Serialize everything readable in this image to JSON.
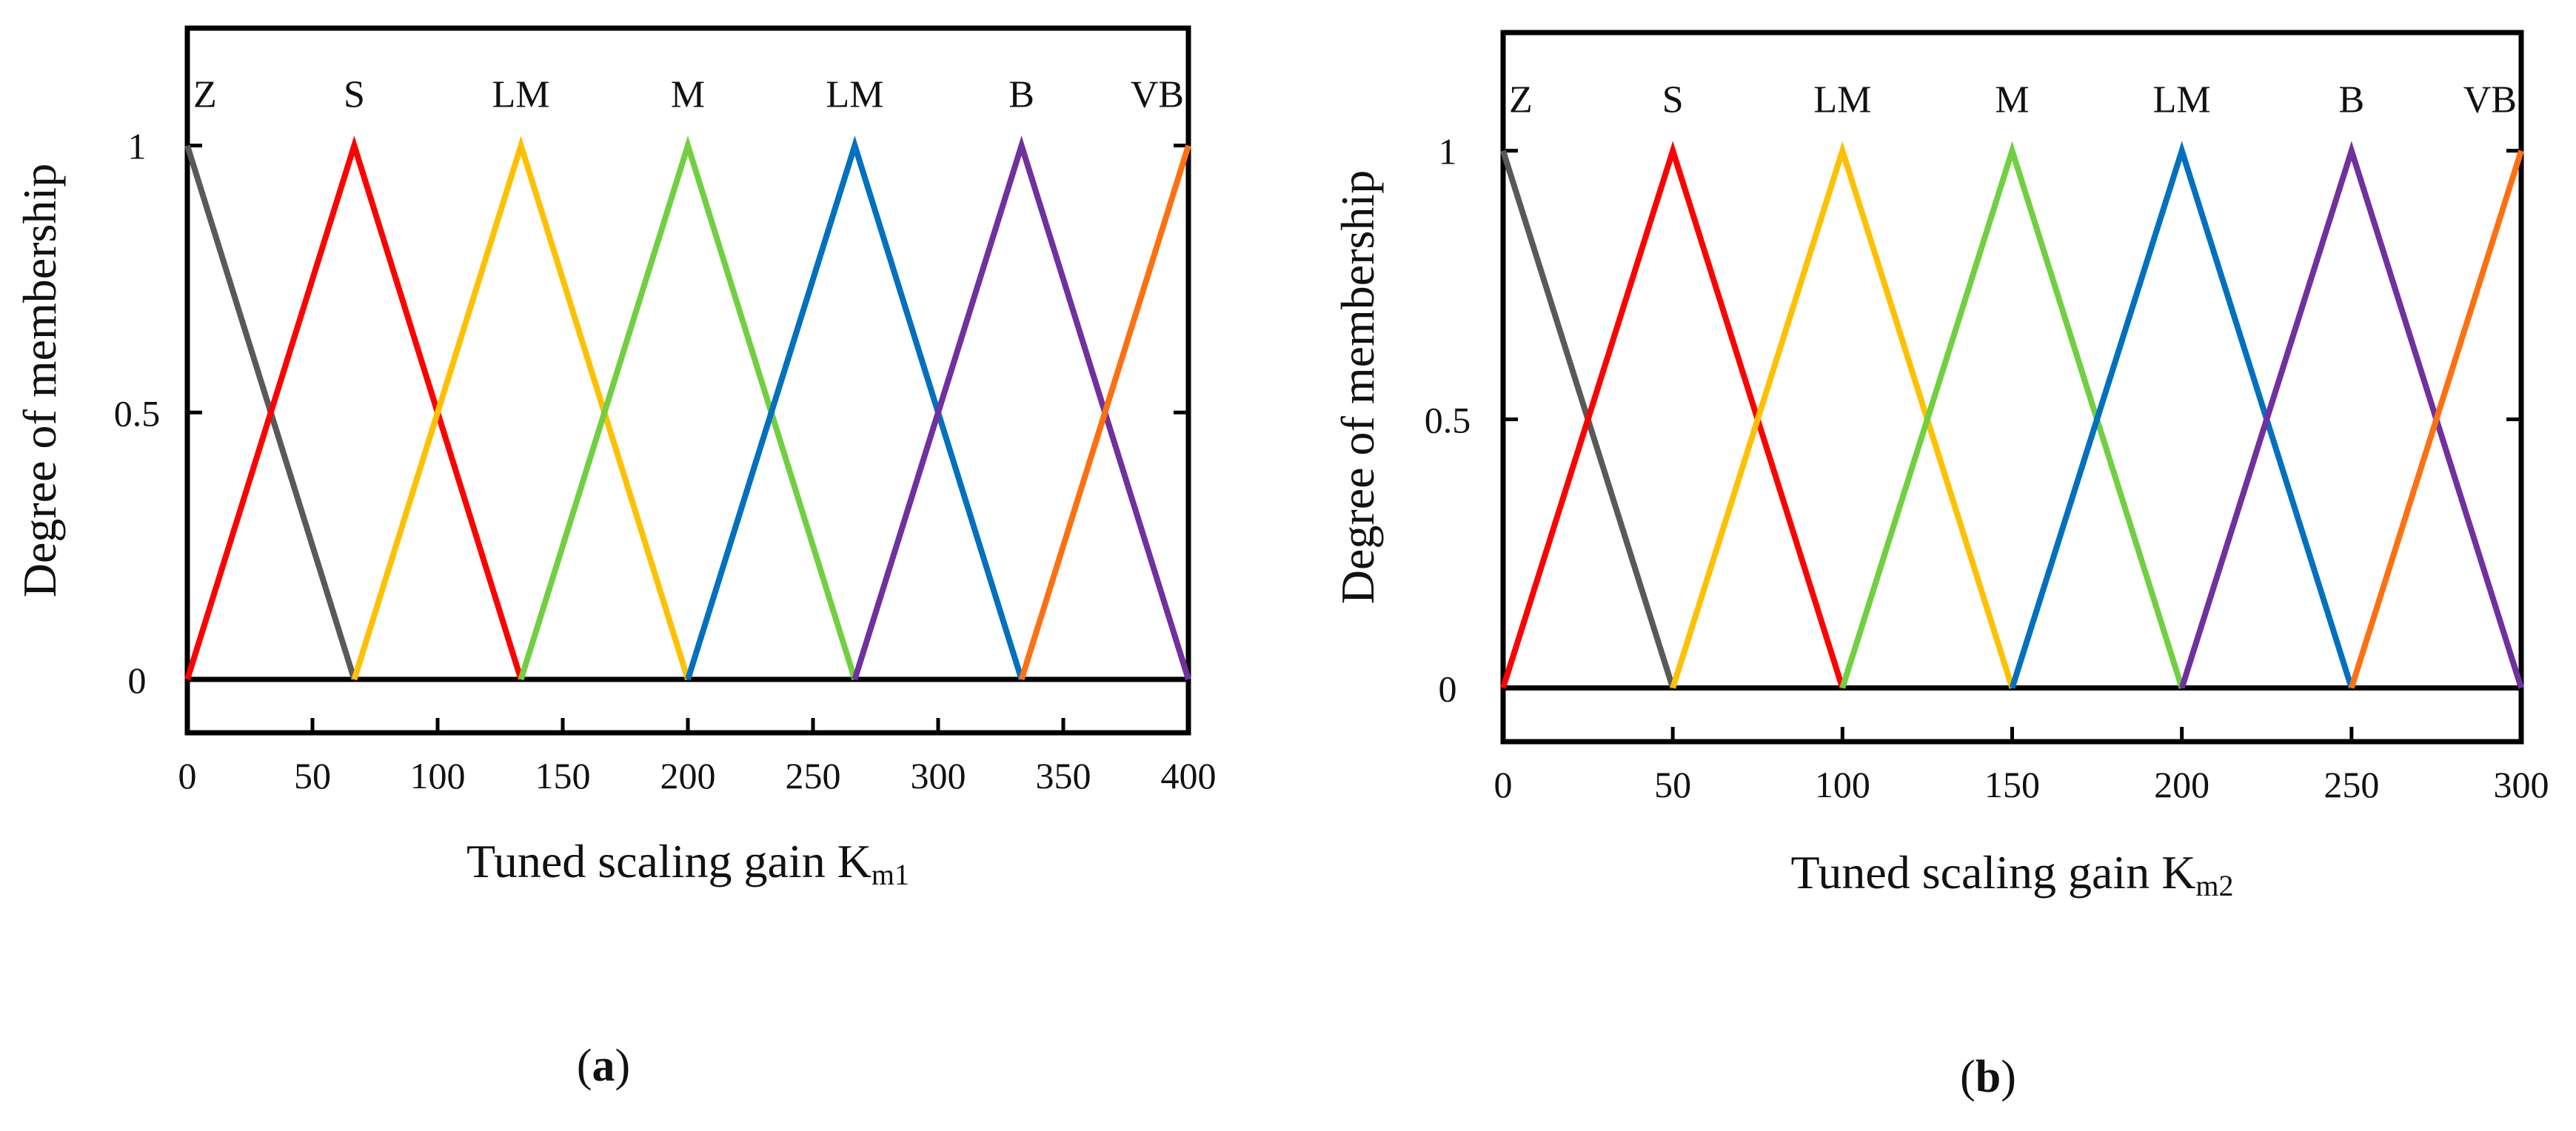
{
  "chart_data": [
    {
      "type": "line",
      "panel_label": "a",
      "xlabel": "Tuned scaling gain K",
      "xlabel_subscript": "m1",
      "ylabel": "Degree  of  membership",
      "xlim": [
        0,
        400
      ],
      "ylim": [
        -0.1,
        1.22
      ],
      "xticks": [
        0,
        50,
        100,
        150,
        200,
        250,
        300,
        350,
        400
      ],
      "yticks": [
        0,
        0.5,
        1
      ],
      "series": [
        {
          "name": "Z",
          "color": "#595959",
          "x": [
            0,
            66.7
          ],
          "y": [
            1,
            0
          ]
        },
        {
          "name": "S",
          "color": "#ff0000",
          "x": [
            0,
            66.7,
            133.3
          ],
          "y": [
            0,
            1,
            0
          ]
        },
        {
          "name": "LM",
          "color": "#ffc000",
          "x": [
            66.7,
            133.3,
            200
          ],
          "y": [
            0,
            1,
            0
          ]
        },
        {
          "name": "M",
          "color": "#70d040",
          "x": [
            133.3,
            200,
            266.7
          ],
          "y": [
            0,
            1,
            0
          ]
        },
        {
          "name": "LM",
          "color": "#0070c0",
          "x": [
            200,
            266.7,
            333.3
          ],
          "y": [
            0,
            1,
            0
          ]
        },
        {
          "name": "B",
          "color": "#7030a0",
          "x": [
            266.7,
            333.3,
            400
          ],
          "y": [
            0,
            1,
            0
          ]
        },
        {
          "name": "VB",
          "color": "#ff7010",
          "x": [
            333.3,
            400
          ],
          "y": [
            0,
            1
          ]
        }
      ]
    },
    {
      "type": "line",
      "panel_label": "b",
      "xlabel": "Tuned scaling gain K",
      "xlabel_subscript": "m2",
      "ylabel": "Degree  of  membership",
      "xlim": [
        0,
        300
      ],
      "ylim": [
        -0.1,
        1.22
      ],
      "xticks": [
        0,
        50,
        100,
        150,
        200,
        250,
        300
      ],
      "yticks": [
        0,
        0.5,
        1
      ],
      "series": [
        {
          "name": "Z",
          "color": "#595959",
          "x": [
            0,
            50
          ],
          "y": [
            1,
            0
          ]
        },
        {
          "name": "S",
          "color": "#ff0000",
          "x": [
            0,
            50,
            100
          ],
          "y": [
            0,
            1,
            0
          ]
        },
        {
          "name": "LM",
          "color": "#ffc000",
          "x": [
            50,
            100,
            150
          ],
          "y": [
            0,
            1,
            0
          ]
        },
        {
          "name": "M",
          "color": "#70d040",
          "x": [
            100,
            150,
            200
          ],
          "y": [
            0,
            1,
            0
          ]
        },
        {
          "name": "LM",
          "color": "#0070c0",
          "x": [
            150,
            200,
            250
          ],
          "y": [
            0,
            1,
            0
          ]
        },
        {
          "name": "B",
          "color": "#7030a0",
          "x": [
            200,
            250,
            300
          ],
          "y": [
            0,
            1,
            0
          ]
        },
        {
          "name": "VB",
          "color": "#ff7010",
          "x": [
            250,
            300
          ],
          "y": [
            0,
            1
          ]
        }
      ]
    }
  ]
}
